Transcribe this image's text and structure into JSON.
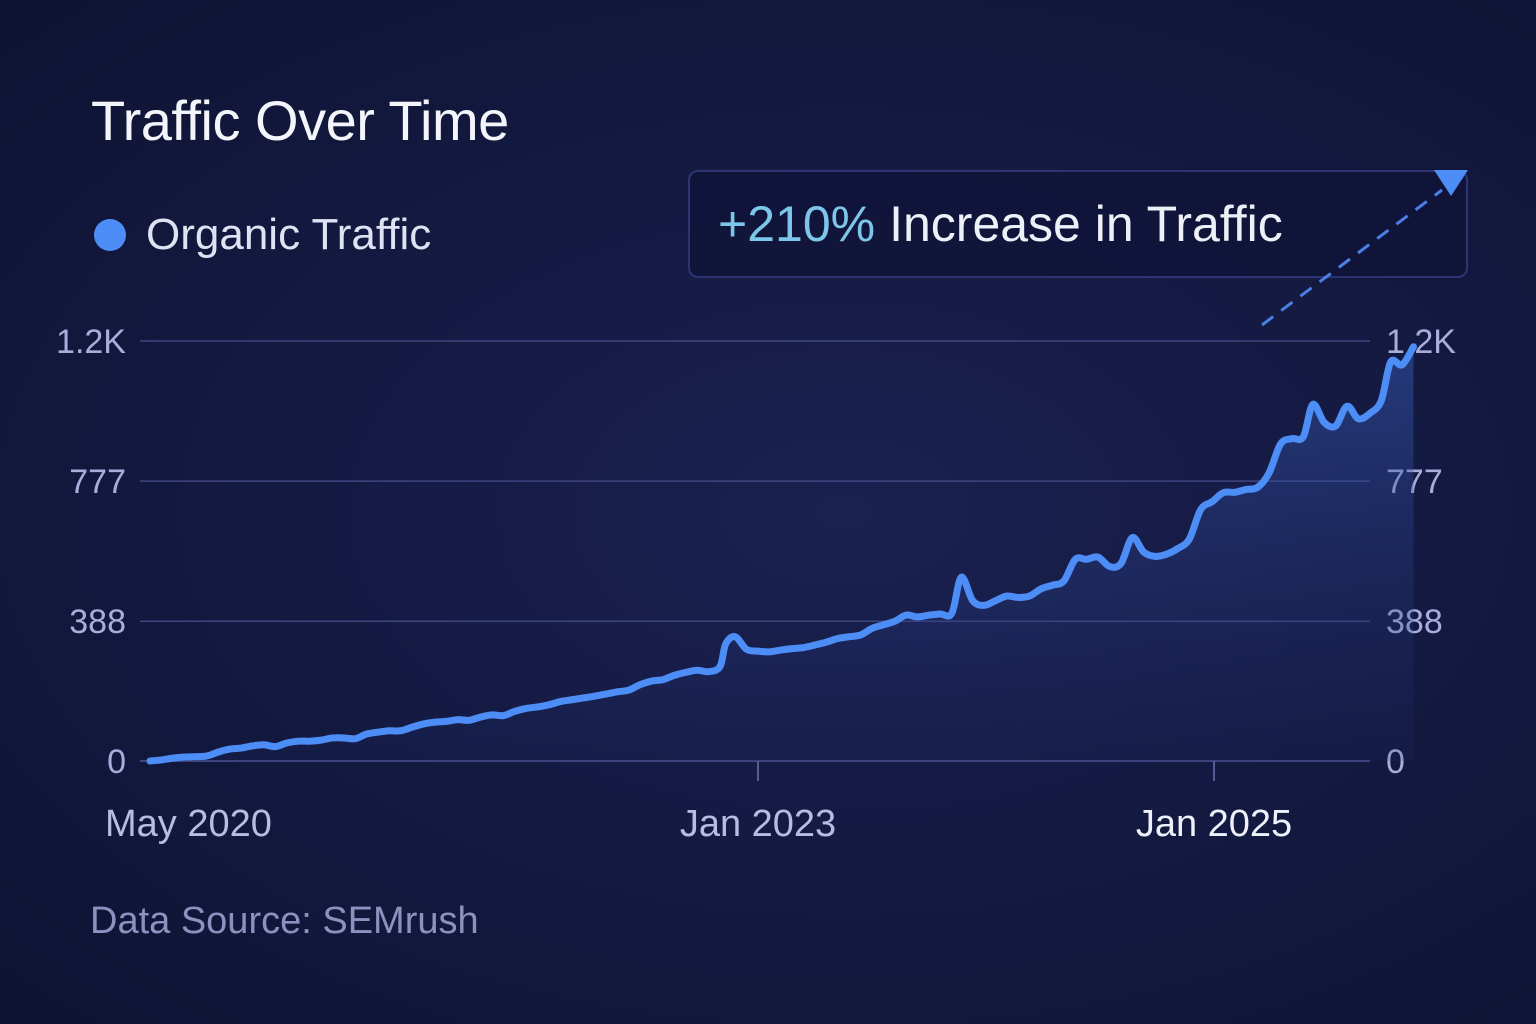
{
  "header": {
    "title": "Traffic Over Time"
  },
  "legend": {
    "label": "Organic Traffic",
    "color": "#4d8df6"
  },
  "callout": {
    "percent": "+210%",
    "text": "Increase in Traffic",
    "percent_color": "#7cc6ea"
  },
  "footer": {
    "source": "Data Source: SEMrush"
  },
  "chart_data": {
    "type": "line",
    "title": "Traffic Over Time",
    "xlabel": "",
    "ylabel": "",
    "series": [
      {
        "name": "Organic Traffic",
        "color": "#4d8df6"
      }
    ],
    "ylim": [
      0,
      1166
    ],
    "y_ticks": [
      {
        "value": 0,
        "label": "0"
      },
      {
        "value": 388,
        "label": "388"
      },
      {
        "value": 777,
        "label": "777"
      },
      {
        "value": 1166,
        "label": "1.2K"
      }
    ],
    "x_range": [
      "2020-05",
      "2025-05"
    ],
    "x_ticks": [
      {
        "t": 0,
        "label": "May 2020",
        "tick_mark": false
      },
      {
        "t": 32,
        "label": "Jan 2023",
        "tick_mark": true
      },
      {
        "t": 56,
        "label": "Jan 2025",
        "tick_mark": true
      }
    ],
    "x_unit": "months since May 2020",
    "grid": true,
    "legend_position": "top-left",
    "annotation": "+210% Increase in Traffic",
    "points": [
      [
        0,
        0
      ],
      [
        0.6,
        3
      ],
      [
        1.2,
        8
      ],
      [
        1.8,
        11
      ],
      [
        2.4,
        12
      ],
      [
        3.0,
        14
      ],
      [
        3.6,
        25
      ],
      [
        4.2,
        33
      ],
      [
        4.8,
        36
      ],
      [
        5.4,
        42
      ],
      [
        6.0,
        45
      ],
      [
        6.6,
        40
      ],
      [
        7.2,
        50
      ],
      [
        7.8,
        55
      ],
      [
        8.4,
        55
      ],
      [
        9.0,
        58
      ],
      [
        9.6,
        64
      ],
      [
        10.2,
        64
      ],
      [
        10.8,
        62
      ],
      [
        11.4,
        75
      ],
      [
        12.0,
        80
      ],
      [
        12.6,
        84
      ],
      [
        13.2,
        84
      ],
      [
        13.8,
        94
      ],
      [
        14.4,
        103
      ],
      [
        15.0,
        108
      ],
      [
        15.6,
        110
      ],
      [
        16.2,
        115
      ],
      [
        16.8,
        113
      ],
      [
        17.4,
        122
      ],
      [
        18.0,
        128
      ],
      [
        18.6,
        126
      ],
      [
        19.2,
        138
      ],
      [
        19.8,
        146
      ],
      [
        20.4,
        150
      ],
      [
        21.0,
        156
      ],
      [
        21.6,
        165
      ],
      [
        22.2,
        170
      ],
      [
        22.8,
        175
      ],
      [
        23.4,
        180
      ],
      [
        24.0,
        186
      ],
      [
        24.6,
        192
      ],
      [
        25.2,
        197
      ],
      [
        25.8,
        212
      ],
      [
        26.4,
        222
      ],
      [
        27.0,
        226
      ],
      [
        27.6,
        238
      ],
      [
        28.2,
        246
      ],
      [
        28.8,
        252
      ],
      [
        29.4,
        248
      ],
      [
        30.0,
        262
      ],
      [
        30.3,
        325
      ],
      [
        30.8,
        345
      ],
      [
        31.4,
        310
      ],
      [
        32.0,
        305
      ],
      [
        32.6,
        303
      ],
      [
        33.2,
        308
      ],
      [
        33.8,
        312
      ],
      [
        34.4,
        315
      ],
      [
        35.0,
        322
      ],
      [
        35.6,
        330
      ],
      [
        36.2,
        340
      ],
      [
        36.8,
        345
      ],
      [
        37.4,
        350
      ],
      [
        38.0,
        368
      ],
      [
        38.6,
        378
      ],
      [
        39.2,
        388
      ],
      [
        39.8,
        405
      ],
      [
        40.4,
        400
      ],
      [
        41.0,
        405
      ],
      [
        41.6,
        408
      ],
      [
        42.2,
        410
      ],
      [
        42.7,
        510
      ],
      [
        43.3,
        445
      ],
      [
        43.9,
        432
      ],
      [
        44.5,
        445
      ],
      [
        45.1,
        458
      ],
      [
        45.7,
        454
      ],
      [
        46.3,
        458
      ],
      [
        46.9,
        478
      ],
      [
        47.5,
        488
      ],
      [
        48.1,
        500
      ],
      [
        48.7,
        560
      ],
      [
        49.3,
        560
      ],
      [
        49.9,
        566
      ],
      [
        50.5,
        540
      ],
      [
        51.1,
        548
      ],
      [
        51.7,
        620
      ],
      [
        52.3,
        580
      ],
      [
        52.9,
        568
      ],
      [
        53.5,
        574
      ],
      [
        54.1,
        590
      ],
      [
        54.7,
        616
      ],
      [
        55.3,
        698
      ],
      [
        55.9,
        720
      ],
      [
        56.5,
        745
      ],
      [
        57.1,
        746
      ],
      [
        57.7,
        754
      ],
      [
        58.3,
        760
      ],
      [
        58.9,
        800
      ],
      [
        59.5,
        880
      ],
      [
        60.1,
        895
      ],
      [
        60.7,
        900
      ],
      [
        61.2,
        990
      ],
      [
        61.8,
        940
      ],
      [
        62.4,
        930
      ],
      [
        63.0,
        985
      ],
      [
        63.6,
        950
      ],
      [
        64.2,
        965
      ],
      [
        64.8,
        1000
      ],
      [
        65.3,
        1108
      ],
      [
        65.9,
        1100
      ],
      [
        66.5,
        1150
      ]
    ]
  }
}
